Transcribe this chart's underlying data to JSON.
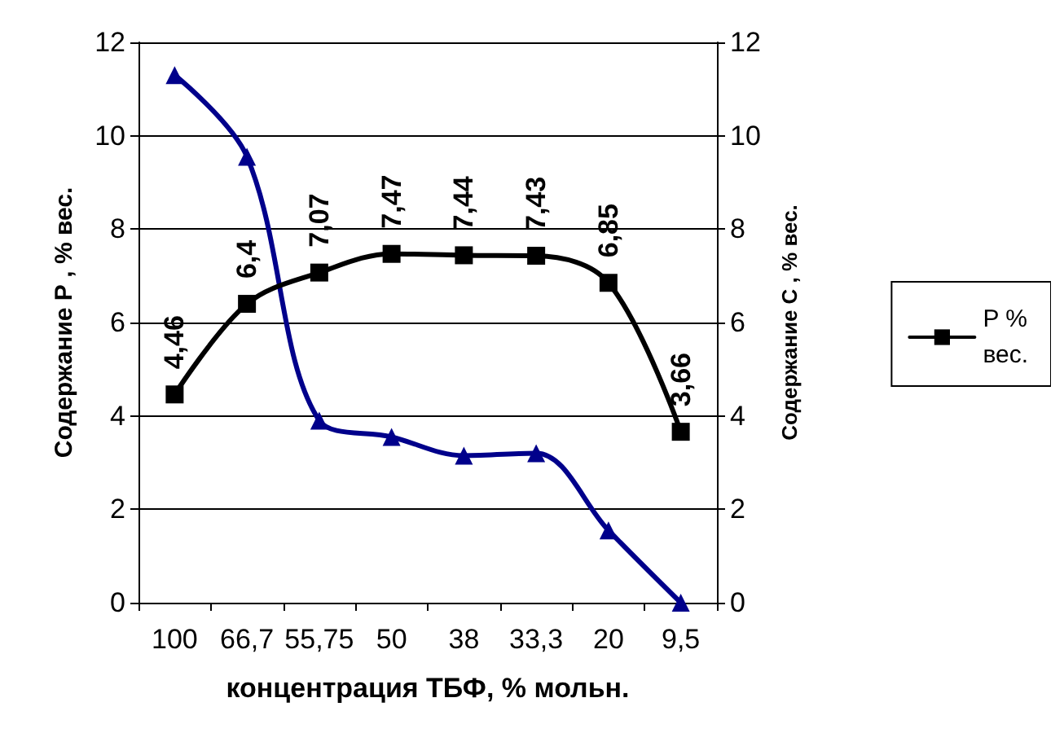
{
  "chart_data": {
    "type": "line",
    "xlabel": "концентрация ТБФ, % мольн.",
    "ylabel": "Содержание Р , % вес.",
    "y2label": "Содержание С , % вес.",
    "categories": [
      "100",
      "66,7",
      "55,75",
      "50",
      "38",
      "33,3",
      "20",
      "9,5"
    ],
    "series": [
      {
        "name": "P % вес.",
        "color": "#000000",
        "marker": "square",
        "values": [
          4.46,
          6.4,
          7.07,
          7.47,
          7.44,
          7.43,
          6.85,
          3.66
        ],
        "value_labels": [
          "4,46",
          "6,4",
          "7,07",
          "7,47",
          "7,44",
          "7,43",
          "6,85",
          "3,66"
        ]
      },
      {
        "color": "#00008b",
        "marker": "triangle",
        "axis": "y2",
        "values": [
          11.3,
          9.55,
          3.9,
          3.55,
          3.15,
          3.2,
          1.55,
          0.0
        ]
      }
    ],
    "ylim": [
      0,
      12
    ],
    "yticks": [
      0,
      2,
      4,
      6,
      8,
      10,
      12
    ],
    "y2lim": [
      0,
      12
    ],
    "y2ticks": [
      0,
      2,
      4,
      6,
      8,
      10,
      12
    ],
    "grid": "y",
    "legend": "right",
    "line_style": "solid"
  }
}
